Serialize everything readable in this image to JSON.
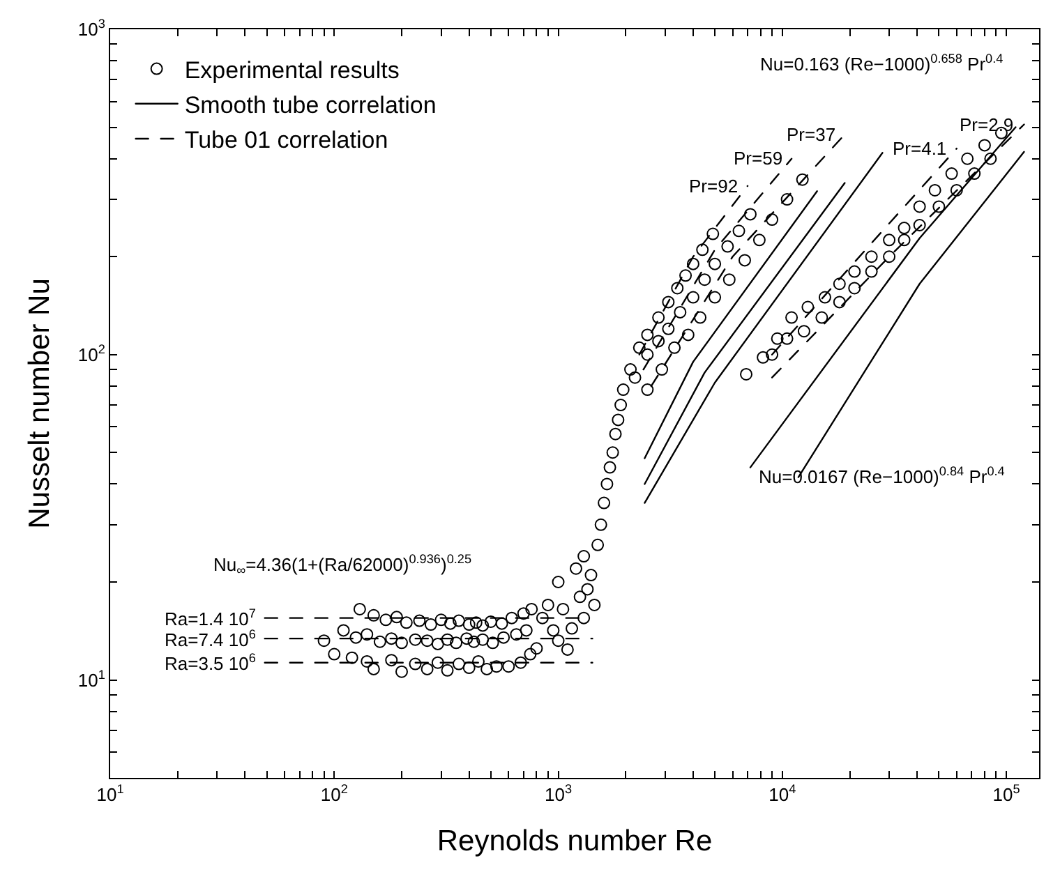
{
  "chart_data": {
    "type": "scatter",
    "xlabel": "Reynolds number Re",
    "ylabel": "Nusselt number Nu",
    "log": "xy",
    "grid": false,
    "legend": "top left",
    "xlim": [
      10,
      140000
    ],
    "xticks": [
      {
        "value": 10,
        "label": "10$^{1}$"
      },
      {
        "value": 20,
        "label": null
      },
      {
        "value": 30,
        "label": null
      },
      {
        "value": 40,
        "label": null
      },
      {
        "value": 50,
        "label": null
      },
      {
        "value": 60,
        "label": null
      },
      {
        "value": 70,
        "label": null
      },
      {
        "value": 80,
        "label": null
      },
      {
        "value": 90,
        "label": null
      },
      {
        "value": 100,
        "label": "10$^{2}$"
      },
      {
        "value": 200,
        "label": null
      },
      {
        "value": 300,
        "label": null
      },
      {
        "value": 400,
        "label": null
      },
      {
        "value": 500,
        "label": null
      },
      {
        "value": 600,
        "label": null
      },
      {
        "value": 700,
        "label": null
      },
      {
        "value": 800,
        "label": null
      },
      {
        "value": 900,
        "label": null
      },
      {
        "value": 1000,
        "label": "10$^{3}$"
      },
      {
        "value": 2000,
        "label": null
      },
      {
        "value": 3000,
        "label": null
      },
      {
        "value": 4000,
        "label": null
      },
      {
        "value": 5000,
        "label": null
      },
      {
        "value": 6000,
        "label": null
      },
      {
        "value": 7000,
        "label": null
      },
      {
        "value": 8000,
        "label": null
      },
      {
        "value": 9000,
        "label": null
      },
      {
        "value": 10000,
        "label": "10$^{4}$"
      },
      {
        "value": 20000,
        "label": null
      },
      {
        "value": 30000,
        "label": null
      },
      {
        "value": 40000,
        "label": null
      },
      {
        "value": 50000,
        "label": null
      },
      {
        "value": 60000,
        "label": null
      },
      {
        "value": 70000,
        "label": null
      },
      {
        "value": 80000,
        "label": null
      },
      {
        "value": 90000,
        "label": null
      },
      {
        "value": 100000,
        "label": "10$^{5}$"
      }
    ],
    "ylim": [
      5,
      1000
    ],
    "yticks": [
      {
        "value": 5,
        "label": null
      },
      {
        "value": 6,
        "label": null
      },
      {
        "value": 7,
        "label": null
      },
      {
        "value": 8,
        "label": null
      },
      {
        "value": 9,
        "label": null
      },
      {
        "value": 10,
        "label": "10$^{1}$"
      },
      {
        "value": 20,
        "label": null
      },
      {
        "value": 30,
        "label": null
      },
      {
        "value": 40,
        "label": null
      },
      {
        "value": 50,
        "label": null
      },
      {
        "value": 60,
        "label": null
      },
      {
        "value": 70,
        "label": null
      },
      {
        "value": 80,
        "label": null
      },
      {
        "value": 90,
        "label": null
      },
      {
        "value": 100,
        "label": "10$^{2}$"
      },
      {
        "value": 200,
        "label": null
      },
      {
        "value": 300,
        "label": null
      },
      {
        "value": 400,
        "label": null
      },
      {
        "value": 500,
        "label": null
      },
      {
        "value": 600,
        "label": null
      },
      {
        "value": 700,
        "label": null
      },
      {
        "value": 800,
        "label": null
      },
      {
        "value": 900,
        "label": null
      },
      {
        "value": 1000,
        "label": "10$^{3}$"
      }
    ],
    "series": [
      {
        "name": "Experimental results",
        "type": "scatter",
        "marker": "circle",
        "color": "#000000",
        "x": [
          130,
          150,
          170,
          190,
          210,
          240,
          270,
          300,
          330,
          360,
          400,
          430,
          460,
          500,
          560,
          620,
          700,
          760,
          90,
          110,
          125,
          140,
          160,
          180,
          200,
          230,
          260,
          290,
          320,
          350,
          390,
          420,
          460,
          510,
          570,
          650,
          720,
          100,
          120,
          140,
          150,
          180,
          200,
          230,
          260,
          290,
          320,
          360,
          400,
          440,
          480,
          530,
          600,
          680,
          750,
          800,
          850,
          900,
          950,
          1000,
          1000,
          1050,
          1100,
          1150,
          1200,
          1250,
          1300,
          1300,
          1350,
          1400,
          1450,
          1500,
          1550,
          1600,
          1650,
          1700,
          1750,
          1800,
          1850,
          1900,
          1950,
          2100,
          2300,
          2500,
          2800,
          3100,
          3400,
          3700,
          4000,
          4400,
          4900,
          2200,
          2500,
          2800,
          3100,
          3500,
          4000,
          4500,
          5000,
          5700,
          6400,
          7200,
          2500,
          2900,
          3300,
          3800,
          4300,
          5000,
          5800,
          6800,
          7900,
          9000,
          10500,
          12300,
          6900,
          8200,
          9000,
          10500,
          12500,
          15000,
          18000,
          21000,
          25000,
          30000,
          35000,
          41000,
          50000,
          60000,
          72000,
          85000,
          9500,
          11000,
          13000,
          15500,
          18000,
          21000,
          25000,
          30000,
          35000,
          41000,
          48000,
          57000,
          67000,
          80000,
          95000
        ],
        "values": [
          16.5,
          15.8,
          15.3,
          15.6,
          15,
          15.2,
          14.8,
          15.3,
          14.9,
          15.2,
          14.8,
          15,
          14.7,
          15.1,
          14.9,
          15.5,
          16,
          16.5,
          13.2,
          14.2,
          13.5,
          13.8,
          13.1,
          13.4,
          13,
          13.3,
          13.2,
          12.9,
          13.3,
          13,
          13.4,
          13.1,
          13.3,
          13,
          13.5,
          13.8,
          14.2,
          12,
          11.7,
          11.4,
          10.8,
          11.5,
          10.6,
          11.2,
          10.8,
          11.3,
          10.7,
          11.2,
          10.9,
          11.4,
          10.8,
          11,
          11,
          11.3,
          12,
          12.5,
          15.5,
          17,
          14.2,
          20,
          13.2,
          16.5,
          12.4,
          14.4,
          22,
          18,
          15.5,
          24,
          19,
          21,
          17,
          26,
          30,
          35,
          40,
          45,
          50,
          57,
          63,
          70,
          78,
          90,
          105,
          115,
          130,
          145,
          160,
          175,
          190,
          210,
          235,
          85,
          100,
          110,
          120,
          135,
          150,
          170,
          190,
          215,
          240,
          270,
          78,
          90,
          105,
          115,
          130,
          150,
          170,
          195,
          225,
          260,
          300,
          345,
          87,
          98,
          100,
          112,
          118,
          130,
          145,
          160,
          180,
          200,
          225,
          250,
          285,
          320,
          360,
          400,
          112,
          130,
          140,
          150,
          165,
          180,
          200,
          225,
          245,
          285,
          320,
          360,
          400,
          440,
          480
        ]
      },
      {
        "name": "Smooth tube correlation",
        "type": "line",
        "line_style": "solid",
        "color": "#000000",
        "x": [
          2430,
          4000,
          14300
        ],
        "values": [
          48,
          95,
          318
        ]
      },
      {
        "type": "line",
        "line_style": "solid",
        "color": "#000000",
        "x": [
          2430,
          4500,
          19000
        ],
        "values": [
          40,
          88,
          337
        ]
      },
      {
        "type": "line",
        "line_style": "solid",
        "color": "#000000",
        "x": [
          2430,
          5000,
          28000
        ],
        "values": [
          35,
          82,
          417
        ]
      },
      {
        "type": "line",
        "line_style": "solid",
        "color": "#000000",
        "x": [
          7200,
          41000,
          110000
        ],
        "values": [
          45,
          228,
          500
        ]
      },
      {
        "type": "line",
        "line_style": "solid",
        "color": "#000000",
        "x": [
          11800,
          41000,
          120000
        ],
        "values": [
          42,
          165,
          420
        ]
      },
      {
        "name": "Tube 01 correlation",
        "type": "line",
        "line_style": "dashed",
        "color": "#000000",
        "x": [
          49,
          1350
        ],
        "values": [
          15.5,
          15.5
        ]
      },
      {
        "type": "line",
        "line_style": "dashed",
        "color": "#000000",
        "x": [
          49,
          1420
        ],
        "values": [
          13.4,
          13.4
        ]
      },
      {
        "type": "line",
        "line_style": "dashed",
        "color": "#000000",
        "x": [
          49,
          1420
        ],
        "values": [
          11.3,
          11.3
        ]
      },
      {
        "type": "line",
        "line_style": "dashed",
        "color": "#000000",
        "x": [
          2300,
          4000,
          7000
        ],
        "values": [
          100,
          200,
          330
        ]
      },
      {
        "type": "line",
        "line_style": "dashed",
        "color": "#000000",
        "x": [
          2400,
          5000,
          11000
        ],
        "values": [
          90,
          210,
          400
        ]
      },
      {
        "type": "line",
        "line_style": "dashed",
        "color": "#000000",
        "x": [
          2600,
          6000,
          19000
        ],
        "values": [
          80,
          200,
          475
        ]
      },
      {
        "type": "line",
        "line_style": "dashed",
        "color": "#000000",
        "x": [
          9000,
          25000,
          60000
        ],
        "values": [
          100,
          220,
          430
        ]
      },
      {
        "type": "line",
        "line_style": "dashed",
        "color": "#000000",
        "x": [
          9000,
          30000,
          120000
        ],
        "values": [
          85,
          200,
          510
        ]
      }
    ],
    "annotations": [
      "Nu=0.163 (Re−1000)$^{0.658}$ Pr$^{0.4}$",
      "Nu=0.0167 (Re−1000)$^{0.84}$ Pr$^{0.4}$",
      "Nu$_{∞}$=4.36(1+(Ra/62000)$^{0.936}$)$^{0.25}$",
      {
        "text": "Ra=1.4 10$^{7}$",
        "x": 49,
        "y": 15.5
      },
      {
        "text": "Ra=7.4 10$^{6}$",
        "x": 49,
        "y": 13.4
      },
      {
        "text": "Ra=3.5 10$^{6}$",
        "x": 49,
        "y": 11.3
      },
      {
        "text": "Pr=92",
        "x": 7000,
        "y": 330
      },
      {
        "text": "Pr=59",
        "x": 11000,
        "y": 400
      },
      {
        "text": "Pr=37",
        "x": 19000,
        "y": 475
      },
      {
        "text": "Pr=4.1",
        "x": 60000,
        "y": 430
      },
      {
        "text": "Pr=2.9",
        "x": 120000,
        "y": 510
      }
    ]
  }
}
